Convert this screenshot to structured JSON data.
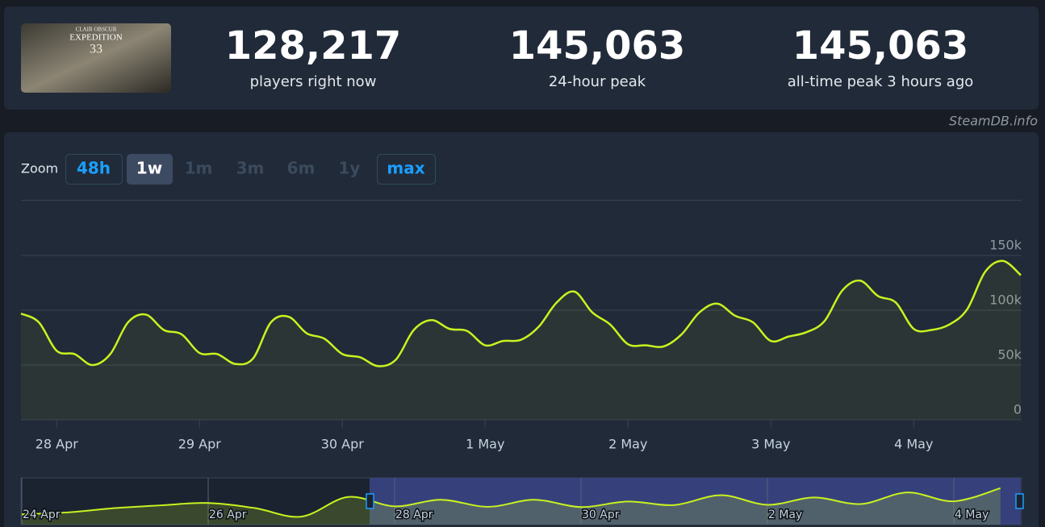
{
  "game_logo": {
    "top": "CLAIR OBSCUR",
    "title": "EXPEDITION",
    "number": "33"
  },
  "stats": [
    {
      "value": "128,217",
      "label": "players right now"
    },
    {
      "value": "145,063",
      "label": "24-hour peak"
    },
    {
      "value": "145,063",
      "label": "all-time peak 3 hours ago"
    }
  ],
  "watermark": "SteamDB.info",
  "zoom": {
    "label": "Zoom",
    "options": [
      "48h",
      "1w",
      "1m",
      "3m",
      "6m",
      "1y",
      "max"
    ]
  },
  "chart_data": [
    {
      "type": "line",
      "categories": [
        null,
        null,
        "28 Apr",
        null,
        null,
        null,
        null,
        null,
        null,
        null,
        "29 Apr",
        null,
        null,
        null,
        null,
        null,
        null,
        null,
        "30 Apr",
        null,
        null,
        null,
        null,
        null,
        null,
        null,
        "1 May",
        null,
        null,
        null,
        null,
        null,
        null,
        null,
        "2 May",
        null,
        null,
        null,
        null,
        null,
        null,
        null,
        "3 May",
        null,
        null,
        null,
        null,
        null,
        null,
        null,
        "4 May",
        null,
        null,
        null,
        null,
        null,
        null
      ],
      "series": [
        {
          "color": "#c9f21f",
          "values": [
            97000,
            89000,
            63000,
            60000,
            50000,
            60000,
            89000,
            96000,
            82000,
            78000,
            61000,
            60000,
            51000,
            56000,
            89000,
            94000,
            79000,
            74000,
            60000,
            57000,
            49000,
            55000,
            82000,
            91000,
            83000,
            81000,
            68000,
            72000,
            73000,
            85000,
            107000,
            117000,
            98000,
            87000,
            69000,
            68000,
            67000,
            78000,
            98000,
            106000,
            95000,
            89000,
            72000,
            76000,
            80000,
            90000,
            118000,
            127000,
            113000,
            107000,
            83000,
            82000,
            87000,
            101000,
            135000,
            145000,
            132000
          ]
        }
      ],
      "ylim": [
        0,
        200000
      ],
      "yticks": [
        0,
        {
          "value": 50000,
          "label": "50k"
        },
        {
          "value": 100000,
          "label": "100k"
        },
        {
          "value": 150000,
          "label": "150k"
        }
      ],
      "grid": true
    },
    {
      "type": "area",
      "categories": [
        "24 Apr",
        null,
        null,
        null,
        "26 Apr",
        null,
        null,
        null,
        "28 Apr",
        null,
        null,
        null,
        "30 Apr",
        null,
        null,
        null,
        "2 May",
        null,
        null,
        null,
        "4 May",
        null
      ],
      "series": [
        {
          "color": "#c9f21f",
          "values": [
            31000,
            39000,
            56000,
            67000,
            76000,
            56000,
            22000,
            100000,
            63000,
            89000,
            61000,
            89000,
            60000,
            82000,
            68000,
            107000,
            69000,
            98000,
            72000,
            118000,
            83000,
            135000
          ]
        }
      ],
      "ylim": [
        0,
        160000
      ]
    }
  ]
}
